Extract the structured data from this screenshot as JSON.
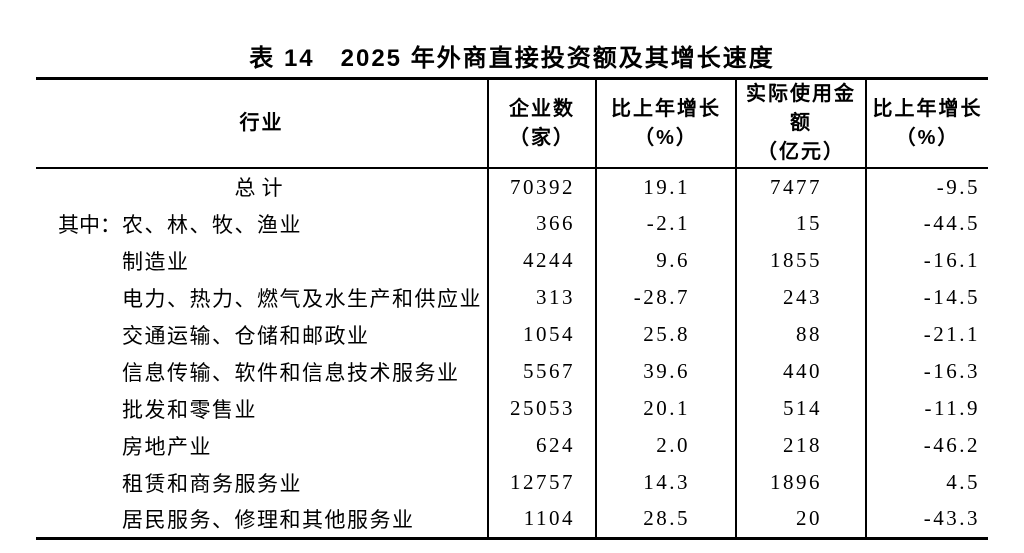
{
  "page": {
    "background": "#ffffff",
    "text_color": "#000000",
    "border_color": "#000000"
  },
  "title": "表 14　2025 年外商直接投资额及其增长速度",
  "table": {
    "header": {
      "industry": "行业",
      "enterprises_l1": "企业数",
      "enterprises_l2": "（家）",
      "growth1_l1": "比上年增长",
      "growth1_l2": "（%）",
      "amount_l1": "实际使用金额",
      "amount_l2": "（亿元）",
      "growth2_l1": "比上年增长",
      "growth2_l2": "（%）"
    },
    "rows": [
      {
        "prefix": "",
        "label": "总计",
        "enterprises": "70392",
        "growth1": "19.1",
        "amount": "7477",
        "growth2": "-9.5"
      },
      {
        "prefix": "其中：",
        "label": "农、林、牧、渔业",
        "enterprises": "366",
        "growth1": "-2.1",
        "amount": "15",
        "growth2": "-44.5"
      },
      {
        "prefix": "",
        "label": "制造业",
        "enterprises": "4244",
        "growth1": "9.6",
        "amount": "1855",
        "growth2": "-16.1"
      },
      {
        "prefix": "",
        "label": "电力、热力、燃气及水生产和供应业",
        "enterprises": "313",
        "growth1": "-28.7",
        "amount": "243",
        "growth2": "-14.5"
      },
      {
        "prefix": "",
        "label": "交通运输、仓储和邮政业",
        "enterprises": "1054",
        "growth1": "25.8",
        "amount": "88",
        "growth2": "-21.1"
      },
      {
        "prefix": "",
        "label": "信息传输、软件和信息技术服务业",
        "enterprises": "5567",
        "growth1": "39.6",
        "amount": "440",
        "growth2": "-16.3"
      },
      {
        "prefix": "",
        "label": "批发和零售业",
        "enterprises": "25053",
        "growth1": "20.1",
        "amount": "514",
        "growth2": "-11.9"
      },
      {
        "prefix": "",
        "label": "房地产业",
        "enterprises": "624",
        "growth1": "2.0",
        "amount": "218",
        "growth2": "-46.2"
      },
      {
        "prefix": "",
        "label": "租赁和商务服务业",
        "enterprises": "12757",
        "growth1": "14.3",
        "amount": "1896",
        "growth2": "4.5"
      },
      {
        "prefix": "",
        "label": "居民服务、修理和其他服务业",
        "enterprises": "1104",
        "growth1": "28.5",
        "amount": "20",
        "growth2": "-43.3"
      }
    ]
  }
}
